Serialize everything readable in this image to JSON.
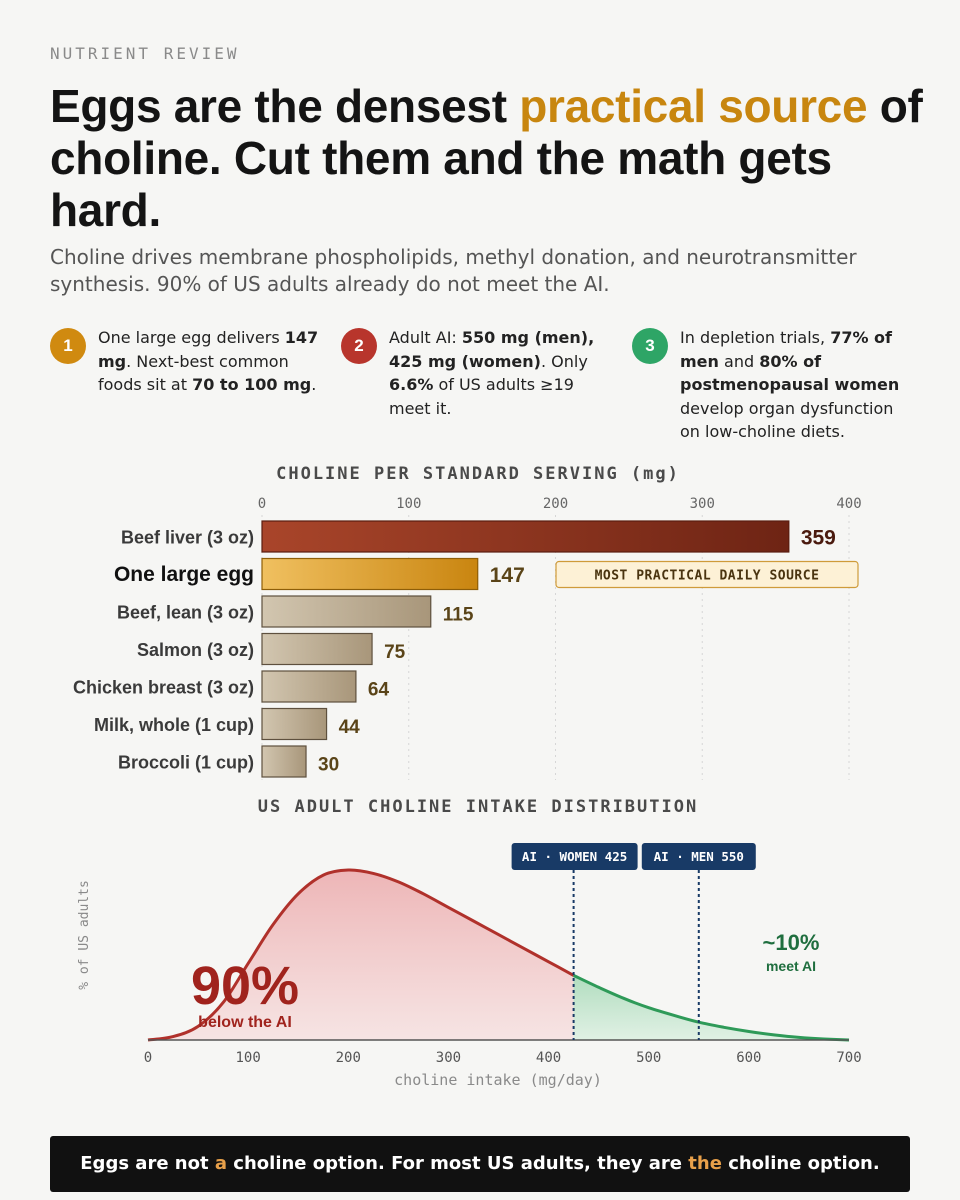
{
  "header": {
    "kicker": "NUTRIENT REVIEW",
    "title_parts": [
      "Eggs are the densest ",
      "practical source",
      " of choline. Cut them and the math gets hard."
    ],
    "subtitle": "Choline drives membrane phospholipids, methyl donation, and neurotransmitter synthesis. 90% of US adults already do not meet the AI."
  },
  "colors": {
    "accent": "#c8860f",
    "liver": "#8a2b17",
    "egg": "#e0a12c",
    "neutral_bar": "#b8a88e",
    "below_ai": "#b0312b",
    "meets_ai": "#2e9a58",
    "ai_label": "#183a66",
    "banner_bg": "#111111"
  },
  "facts": [
    {
      "number": "1",
      "color": "#d08a10",
      "segments": [
        {
          "t": "One large egg delivers ",
          "b": false
        },
        {
          "t": "147 mg",
          "b": true
        },
        {
          "t": ". Next-best common foods sit at ",
          "b": false
        },
        {
          "t": "70 to 100 mg",
          "b": true
        },
        {
          "t": ".",
          "b": false
        }
      ]
    },
    {
      "number": "2",
      "color": "#b8352c",
      "segments": [
        {
          "t": "Adult AI: ",
          "b": false
        },
        {
          "t": "550 mg (men), 425 mg (women)",
          "b": true
        },
        {
          "t": ". Only ",
          "b": false
        },
        {
          "t": "6.6%",
          "b": true
        },
        {
          "t": " of US adults ≥19 meet it.",
          "b": false
        }
      ]
    },
    {
      "number": "3",
      "color": "#2ea566",
      "segments": [
        {
          "t": "In depletion trials, ",
          "b": false
        },
        {
          "t": "77% of men",
          "b": true
        },
        {
          "t": " and ",
          "b": false
        },
        {
          "t": "80% of postmenopausal women",
          "b": true
        },
        {
          "t": " develop organ dysfunction on low-choline diets.",
          "b": false
        }
      ]
    }
  ],
  "chart_data": [
    {
      "type": "bar",
      "orientation": "horizontal",
      "title": "CHOLINE PER STANDARD SERVING (mg)",
      "categories": [
        "Beef liver (3 oz)",
        "One large egg",
        "Beef, lean (3 oz)",
        "Salmon (3 oz)",
        "Chicken breast (3 oz)",
        "Milk, whole (1 cup)",
        "Broccoli (1 cup)"
      ],
      "values": [
        359,
        147,
        115,
        75,
        64,
        44,
        30
      ],
      "xlim": [
        0,
        400
      ],
      "xticks": [
        0,
        100,
        200,
        300,
        400
      ],
      "grid": "vertical dotted",
      "highlight_category": "One large egg",
      "annotation": "MOST PRACTICAL DAILY SOURCE"
    },
    {
      "type": "area",
      "title": "US ADULT CHOLINE INTAKE DISTRIBUTION",
      "xlabel": "choline intake (mg/day)",
      "ylabel": "% of US adults",
      "xlim": [
        0,
        700
      ],
      "xticks": [
        0,
        100,
        200,
        300,
        400,
        500,
        600,
        700
      ],
      "curve": {
        "x": [
          0,
          25,
          50,
          75,
          100,
          125,
          150,
          175,
          200,
          225,
          250,
          275,
          300,
          325,
          350,
          375,
          400,
          425,
          450,
          475,
          500,
          525,
          550,
          575,
          600,
          625,
          650,
          675,
          700
        ],
        "y": [
          0.0,
          0.02,
          0.08,
          0.22,
          0.45,
          0.68,
          0.86,
          0.97,
          1.0,
          0.98,
          0.93,
          0.86,
          0.78,
          0.7,
          0.62,
          0.54,
          0.46,
          0.38,
          0.31,
          0.245,
          0.19,
          0.145,
          0.105,
          0.075,
          0.05,
          0.03,
          0.015,
          0.006,
          0.0
        ]
      },
      "reference_lines": [
        {
          "label": "AI · WOMEN 425",
          "x": 425
        },
        {
          "label": "AI · MEN 550",
          "x": 550
        }
      ],
      "split_at": 425,
      "annotations": {
        "below_value": "90%",
        "below_label": "below the AI",
        "meets_value": "~10%",
        "meets_label": "meet AI"
      }
    }
  ],
  "footer": {
    "parts": [
      "Eggs are not ",
      "a",
      " choline option. For most US adults, they are ",
      "the",
      " choline option."
    ]
  }
}
